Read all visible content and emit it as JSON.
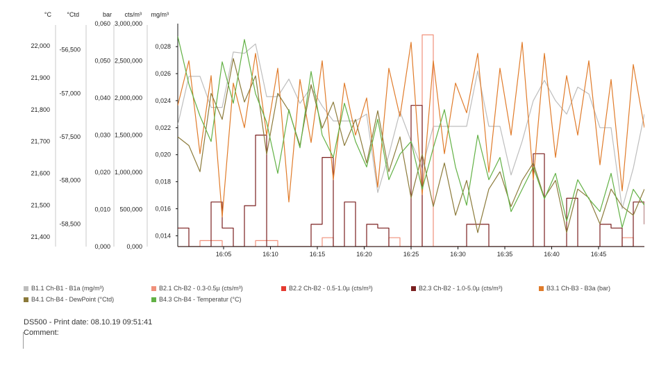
{
  "chart_data": {
    "type": "line",
    "x_ticks": [
      "16:05",
      "16:10",
      "16:15",
      "16:20",
      "16:25",
      "16:30",
      "16:35",
      "16:40",
      "16:45"
    ],
    "x_range": [
      "16:00:30",
      "16:50:00"
    ],
    "axes": [
      {
        "unit": "°C",
        "ticks": [
          "21,400",
          "21,500",
          "21,600",
          "21,700",
          "21,800",
          "21,900",
          "22,000"
        ],
        "range": [
          21.37,
          22.07
        ]
      },
      {
        "unit": "°Ctd",
        "ticks": [
          "-58,500",
          "-58,000",
          "-57,500",
          "-57,000",
          "-56,500"
        ],
        "range": [
          -58.76,
          -56.2
        ]
      },
      {
        "unit": "bar",
        "ticks": [
          "0,000",
          "0,010",
          "0,020",
          "0,030",
          "0,040",
          "0,050",
          "0,060"
        ],
        "range": [
          0,
          0.06
        ]
      },
      {
        "unit": "cts/m³",
        "ticks": [
          "0,000",
          "500,000",
          "1,000,000",
          "1,500,000",
          "2,000,000",
          "2,500,000",
          "3,000,000"
        ],
        "range": [
          0,
          3000000
        ]
      },
      {
        "unit": "mg/m³",
        "ticks": [
          "0,014",
          "0,016",
          "0,018",
          "0,020",
          "0,022",
          "0,024",
          "0,026",
          "0,028"
        ],
        "range": [
          0.0132,
          0.0297
        ]
      }
    ],
    "series": [
      {
        "name": "B1.1 Ch-B1 - B1a (mg/m³)",
        "color": "#bdbdbd",
        "axis": 4,
        "values": [
          0.0222,
          0.0258,
          0.0258,
          0.0235,
          0.0235,
          0.0276,
          0.0275,
          0.0282,
          0.0243,
          0.0243,
          0.0256,
          0.0238,
          0.025,
          0.0236,
          0.0225,
          0.0225,
          0.0225,
          0.023,
          0.0172,
          0.02,
          0.0232,
          0.021,
          0.019,
          0.0221,
          0.0221,
          0.0221,
          0.0221,
          0.0262,
          0.0221,
          0.0221,
          0.0185,
          0.021,
          0.024,
          0.0255,
          0.024,
          0.023,
          0.025,
          0.0245,
          0.022,
          0.022,
          0.016,
          0.019,
          0.023
        ]
      },
      {
        "name": "B2.1 Ch-B2 - 0.3-0.5µ (cts/m³)",
        "color": "#f0907a",
        "axis": 3,
        "values": [
          0,
          0,
          80000,
          80000,
          0,
          0,
          0,
          80000,
          80000,
          0,
          0,
          0,
          0,
          120000,
          0,
          0,
          0,
          0,
          0,
          120000,
          0,
          0,
          2850000,
          0,
          0,
          0,
          0,
          0,
          0,
          0,
          0,
          0,
          0,
          0,
          0,
          0,
          0,
          0,
          0,
          0,
          120000,
          0,
          0
        ]
      },
      {
        "name": "B2.2 Ch-B2 - 0.5-1.0µ (cts/m³)",
        "color": "#e53a2f",
        "axis": 3,
        "values": [
          0,
          0,
          0,
          0,
          0,
          0,
          0,
          0,
          0,
          0,
          0,
          0,
          0,
          0,
          0,
          0,
          0,
          0,
          0,
          0,
          0,
          0,
          0,
          0,
          0,
          0,
          0,
          0,
          0,
          0,
          0,
          0,
          0,
          0,
          0,
          0,
          0,
          0,
          0,
          0,
          0,
          0,
          0
        ]
      },
      {
        "name": "B2.3 Ch-B2 - 1.0-5.0µ (cts/m³)",
        "color": "#7a1f1f",
        "axis": 3,
        "values": [
          250000,
          0,
          0,
          600000,
          250000,
          0,
          550000,
          1500000,
          0,
          0,
          0,
          0,
          300000,
          1200000,
          0,
          600000,
          0,
          300000,
          250000,
          0,
          0,
          1900000,
          0,
          0,
          0,
          0,
          300000,
          300000,
          0,
          0,
          0,
          0,
          1250000,
          0,
          0,
          650000,
          0,
          0,
          300000,
          250000,
          0,
          600000,
          300000
        ]
      },
      {
        "name": "B3.1 Ch-B3 - B3a (bar)",
        "color": "#e07b2a",
        "axis": 2,
        "values": [
          0.038,
          0.05,
          0.025,
          0.046,
          0.008,
          0.044,
          0.032,
          0.052,
          0.03,
          0.048,
          0.012,
          0.045,
          0.028,
          0.05,
          0.018,
          0.044,
          0.03,
          0.04,
          0.016,
          0.048,
          0.035,
          0.055,
          0.014,
          0.05,
          0.025,
          0.044,
          0.036,
          0.052,
          0.02,
          0.048,
          0.03,
          0.055,
          0.018,
          0.052,
          0.024,
          0.046,
          0.03,
          0.05,
          0.022,
          0.045,
          0.015,
          0.049,
          0.032
        ]
      },
      {
        "name": "B4.1 Ch-B4 - DewPoint (°Ctd)",
        "color": "#8b7a3a",
        "axis": 1,
        "values": [
          -57.5,
          -57.6,
          -57.9,
          -57.0,
          -57.3,
          -56.6,
          -57.1,
          -56.8,
          -57.7,
          -57.0,
          -57.2,
          -57.6,
          -56.9,
          -57.4,
          -57.1,
          -57.6,
          -57.3,
          -57.8,
          -57.2,
          -57.9,
          -57.5,
          -58.2,
          -57.7,
          -58.3,
          -57.8,
          -58.4,
          -58.0,
          -58.6,
          -58.1,
          -57.9,
          -58.3,
          -58.0,
          -57.8,
          -58.2,
          -58.0,
          -58.6,
          -58.1,
          -58.2,
          -58.5,
          -58.1,
          -58.3,
          -58.4,
          -58.1
        ]
      },
      {
        "name": "B4.3 Ch-B4 - Temperatur (°C)",
        "color": "#62b145",
        "axis": 0,
        "values": [
          22.03,
          21.88,
          21.78,
          21.7,
          21.95,
          21.82,
          22.02,
          21.85,
          21.76,
          21.6,
          21.8,
          21.68,
          21.92,
          21.72,
          21.65,
          21.82,
          21.7,
          21.62,
          21.77,
          21.58,
          21.66,
          21.7,
          21.55,
          21.68,
          21.8,
          21.62,
          21.5,
          21.72,
          21.58,
          21.65,
          21.48,
          21.55,
          21.62,
          21.52,
          21.6,
          21.45,
          21.58,
          21.52,
          21.48,
          21.6,
          21.43,
          21.55,
          21.5
        ]
      }
    ],
    "grid": false,
    "legend_position": "bottom"
  },
  "legend": [
    {
      "label": "B1.1 Ch-B1 - B1a (mg/m³)",
      "color": "#bdbdbd"
    },
    {
      "label": "B2.1 Ch-B2 - 0.3-0.5µ (cts/m³)",
      "color": "#f0907a"
    },
    {
      "label": "B2.2 Ch-B2 - 0.5-1.0µ (cts/m³)",
      "color": "#e53a2f"
    },
    {
      "label": "B2.3 Ch-B2 - 1.0-5.0µ (cts/m³)",
      "color": "#7a1f1f"
    },
    {
      "label": "B3.1 Ch-B3 - B3a (bar)",
      "color": "#e07b2a"
    },
    {
      "label": "B4.1 Ch-B4 - DewPoint (°Ctd)",
      "color": "#8b7a3a"
    },
    {
      "label": "B4.3 Ch-B4 - Temperatur (°C)",
      "color": "#62b145"
    }
  ],
  "footer": {
    "print_line": "DS500 - Print date: 08.10.19 09:51:41",
    "comment_label": "Comment:"
  }
}
